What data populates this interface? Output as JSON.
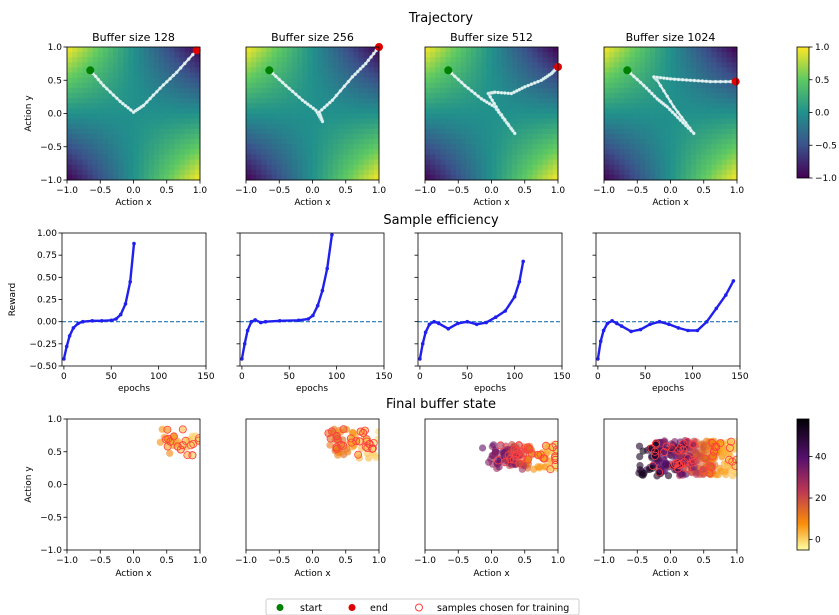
{
  "section_titles": [
    "Trajectory",
    "Sample efficiency",
    "Final buffer state"
  ],
  "panel_titles": [
    "Buffer size 128",
    "Buffer size 256",
    "Buffer size 512",
    "Buffer size 1024"
  ],
  "labels": {
    "action_x": "Action x",
    "action_y": "Action y",
    "epochs": "epochs",
    "reward": "Reward"
  },
  "colors": {
    "start": "#008000",
    "end": "#e00000",
    "trajectory": "#ffffff",
    "reward_line": "#2020ee",
    "baseline": "#1f77b4",
    "chosen_ring": "#ff4040"
  },
  "legend": {
    "start": "start",
    "end": "end",
    "samples": "samples chosen for training"
  },
  "chart_data": [
    {
      "type": "line",
      "title": "Trajectory",
      "background": "heatmap of reward over (Action x, Action y), viridis colormap",
      "xlim": [
        -1,
        1
      ],
      "ylim": [
        -1,
        1
      ],
      "xticks": [
        -1.0,
        -0.5,
        0.0,
        0.5,
        1.0
      ],
      "yticks": [
        -1.0,
        -0.5,
        0.0,
        0.5,
        1.0
      ],
      "xtick_labels": [
        "−1.0",
        "−0.5",
        "0.0",
        "0.5",
        "1.0"
      ],
      "ytick_labels": [
        "−1.0",
        "−0.5",
        "0.0",
        "0.5",
        "1.0"
      ],
      "colorbar": {
        "range": [
          -1,
          1
        ],
        "ticks": [
          "1.0",
          "0.5",
          "0.0",
          "−0.5",
          "−1.0"
        ],
        "tick_values": [
          1,
          0.5,
          0,
          -0.5,
          -1
        ]
      },
      "series": [
        {
          "start": [
            -0.65,
            0.65
          ],
          "end": [
            0.95,
            0.95
          ],
          "path": [
            [
              -0.65,
              0.65
            ],
            [
              -0.45,
              0.42
            ],
            [
              -0.2,
              0.18
            ],
            [
              0.0,
              0.02
            ],
            [
              0.15,
              0.12
            ],
            [
              0.4,
              0.38
            ],
            [
              0.65,
              0.62
            ],
            [
              0.95,
              0.95
            ]
          ]
        },
        {
          "start": [
            -0.65,
            0.65
          ],
          "end": [
            1.0,
            1.0
          ],
          "path": [
            [
              -0.65,
              0.65
            ],
            [
              -0.4,
              0.42
            ],
            [
              -0.15,
              0.2
            ],
            [
              0.05,
              0.05
            ],
            [
              0.15,
              -0.12
            ],
            [
              0.1,
              0.02
            ],
            [
              0.3,
              0.2
            ],
            [
              0.6,
              0.55
            ],
            [
              0.8,
              0.75
            ],
            [
              1.0,
              1.0
            ]
          ]
        },
        {
          "start": [
            -0.65,
            0.65
          ],
          "end": [
            1.0,
            0.7
          ],
          "path": [
            [
              -0.65,
              0.65
            ],
            [
              -0.4,
              0.42
            ],
            [
              -0.15,
              0.22
            ],
            [
              0.05,
              0.1
            ],
            [
              0.2,
              -0.1
            ],
            [
              0.35,
              -0.3
            ],
            [
              0.1,
              0.05
            ],
            [
              -0.05,
              0.3
            ],
            [
              0.05,
              0.32
            ],
            [
              0.3,
              0.3
            ],
            [
              0.5,
              0.4
            ],
            [
              0.75,
              0.5
            ],
            [
              0.9,
              0.6
            ],
            [
              1.0,
              0.7
            ]
          ]
        },
        {
          "start": [
            -0.65,
            0.65
          ],
          "end": [
            0.98,
            0.48
          ],
          "path": [
            [
              -0.65,
              0.65
            ],
            [
              -0.4,
              0.42
            ],
            [
              -0.2,
              0.22
            ],
            [
              -0.05,
              0.1
            ],
            [
              0.15,
              -0.1
            ],
            [
              0.35,
              -0.3
            ],
            [
              0.05,
              0.1
            ],
            [
              -0.2,
              0.5
            ],
            [
              -0.25,
              0.55
            ],
            [
              0.0,
              0.52
            ],
            [
              0.3,
              0.5
            ],
            [
              0.6,
              0.48
            ],
            [
              0.98,
              0.48
            ]
          ]
        }
      ]
    },
    {
      "type": "line",
      "title": "Sample efficiency",
      "xlabel": "epochs",
      "ylabel": "Reward",
      "xlim": [
        -2,
        150
      ],
      "ylim": [
        -0.5,
        1.0
      ],
      "xticks": [
        0,
        50,
        100,
        150
      ],
      "xtick_labels": [
        "0",
        "50",
        "100",
        "150"
      ],
      "yticks": [
        -0.5,
        -0.25,
        0.0,
        0.25,
        0.5,
        0.75,
        1.0
      ],
      "ytick_labels": [
        "−0.50",
        "−0.25",
        "0.00",
        "0.25",
        "0.50",
        "0.75",
        "1.00"
      ],
      "baseline": 0,
      "series": [
        {
          "points": [
            [
              0,
              -0.42
            ],
            [
              3,
              -0.28
            ],
            [
              6,
              -0.16
            ],
            [
              10,
              -0.07
            ],
            [
              15,
              -0.02
            ],
            [
              20,
              0.0
            ],
            [
              30,
              0.01
            ],
            [
              40,
              0.01
            ],
            [
              50,
              0.015
            ],
            [
              55,
              0.03
            ],
            [
              60,
              0.08
            ],
            [
              65,
              0.2
            ],
            [
              70,
              0.45
            ],
            [
              74,
              0.88
            ]
          ]
        },
        {
          "points": [
            [
              0,
              -0.42
            ],
            [
              3,
              -0.25
            ],
            [
              6,
              -0.1
            ],
            [
              10,
              0.0
            ],
            [
              14,
              0.02
            ],
            [
              20,
              -0.01
            ],
            [
              25,
              0.0
            ],
            [
              40,
              0.01
            ],
            [
              60,
              0.015
            ],
            [
              70,
              0.03
            ],
            [
              75,
              0.07
            ],
            [
              80,
              0.18
            ],
            [
              85,
              0.35
            ],
            [
              90,
              0.6
            ],
            [
              95,
              0.98
            ]
          ]
        },
        {
          "points": [
            [
              0,
              -0.42
            ],
            [
              3,
              -0.25
            ],
            [
              6,
              -0.12
            ],
            [
              10,
              -0.03
            ],
            [
              15,
              0.0
            ],
            [
              20,
              -0.02
            ],
            [
              30,
              -0.08
            ],
            [
              40,
              -0.02
            ],
            [
              50,
              0.0
            ],
            [
              60,
              -0.03
            ],
            [
              70,
              -0.01
            ],
            [
              80,
              0.05
            ],
            [
              90,
              0.12
            ],
            [
              100,
              0.28
            ],
            [
              105,
              0.45
            ],
            [
              109,
              0.68
            ]
          ]
        },
        {
          "points": [
            [
              0,
              -0.42
            ],
            [
              3,
              -0.22
            ],
            [
              6,
              -0.1
            ],
            [
              10,
              -0.02
            ],
            [
              15,
              0.01
            ],
            [
              20,
              -0.02
            ],
            [
              25,
              -0.05
            ],
            [
              35,
              -0.11
            ],
            [
              45,
              -0.09
            ],
            [
              55,
              -0.03
            ],
            [
              65,
              0.0
            ],
            [
              75,
              -0.03
            ],
            [
              85,
              -0.07
            ],
            [
              95,
              -0.1
            ],
            [
              105,
              -0.1
            ],
            [
              115,
              0.0
            ],
            [
              125,
              0.15
            ],
            [
              135,
              0.3
            ],
            [
              143,
              0.46
            ]
          ]
        }
      ]
    },
    {
      "type": "scatter",
      "title": "Final buffer state",
      "xlabel": "Action x",
      "ylabel": "Action y",
      "xlim": [
        -1,
        1
      ],
      "ylim": [
        -1,
        1
      ],
      "xticks": [
        -1.0,
        -0.5,
        0.0,
        0.5,
        1.0
      ],
      "yticks": [
        -1.0,
        -0.5,
        0.0,
        0.5,
        1.0
      ],
      "xtick_labels": [
        "−1.0",
        "−0.5",
        "0.0",
        "0.5",
        "1.0"
      ],
      "ytick_labels": [
        "−1.0",
        "−0.5",
        "0.0",
        "0.5",
        "1.0"
      ],
      "colorbar": {
        "range": [
          -5,
          58
        ],
        "ticks": [
          "40",
          "20",
          "0"
        ],
        "tick_values": [
          40,
          20,
          0
        ]
      },
      "clusters": [
        {
          "count": 35,
          "x_range": [
            0.35,
            1.0
          ],
          "y_range": [
            0.3,
            1.0
          ],
          "color_range": [
            0,
            12
          ],
          "chosen": 22
        },
        {
          "count": 70,
          "x_range": [
            0.15,
            1.0
          ],
          "y_range": [
            0.25,
            1.0
          ],
          "color_range": [
            0,
            18
          ],
          "chosen": 35
        },
        {
          "count": 140,
          "x_range": [
            -0.15,
            1.0
          ],
          "y_range": [
            0.1,
            0.75
          ],
          "color_range": [
            0,
            42
          ],
          "chosen": 40
        },
        {
          "count": 320,
          "x_range": [
            -0.55,
            1.0
          ],
          "y_range": [
            -0.05,
            0.85
          ],
          "color_range": [
            0,
            58
          ],
          "chosen": 50
        }
      ]
    }
  ]
}
